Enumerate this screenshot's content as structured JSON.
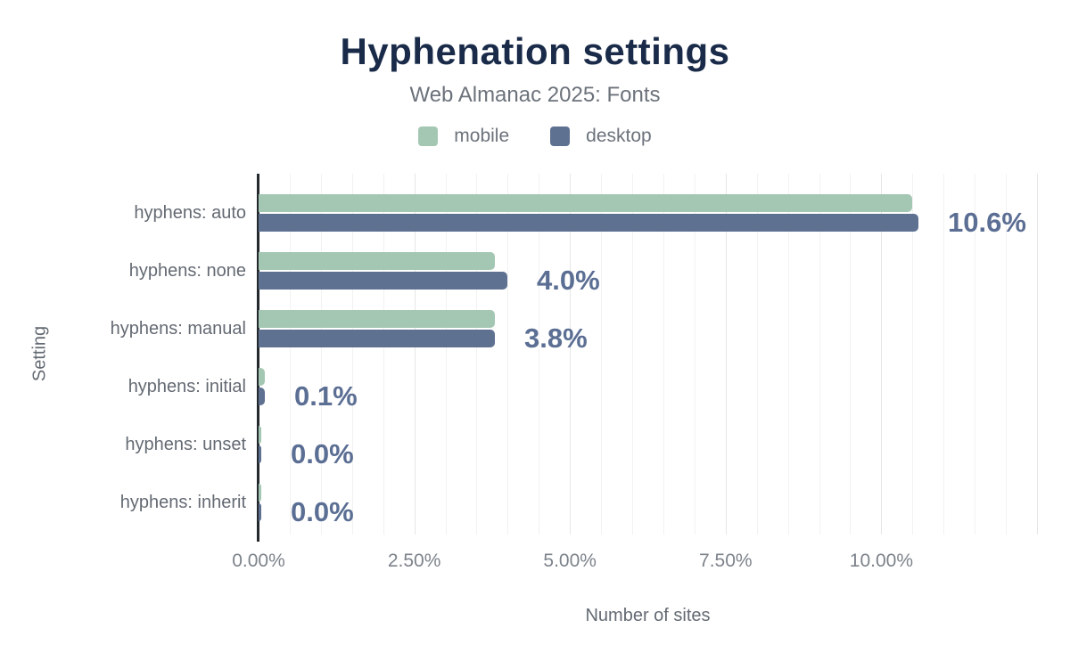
{
  "chart_data": {
    "type": "bar",
    "orientation": "horizontal",
    "title": "Hyphenation settings",
    "subtitle": "Web Almanac 2025: Fonts",
    "xlabel": "Number of sites",
    "ylabel": "Setting",
    "categories": [
      "hyphens: auto",
      "hyphens: none",
      "hyphens: manual",
      "hyphens: initial",
      "hyphens: unset",
      "hyphens: inherit"
    ],
    "series": [
      {
        "name": "mobile",
        "color": "#a4c7b3",
        "values": [
          10.5,
          3.8,
          3.8,
          0.1,
          0.0,
          0.0
        ]
      },
      {
        "name": "desktop",
        "color": "#5e7191",
        "values": [
          10.6,
          4.0,
          3.8,
          0.1,
          0.0,
          0.0
        ]
      }
    ],
    "bar_value_labels": [
      "10.6%",
      "4.0%",
      "3.8%",
      "0.1%",
      "0.0%",
      "0.0%"
    ],
    "x_ticks": [
      {
        "value": 0,
        "label": "0.00%"
      },
      {
        "value": 2.5,
        "label": "2.50%"
      },
      {
        "value": 5,
        "label": "5.00%"
      },
      {
        "value": 7.5,
        "label": "7.50%"
      },
      {
        "value": 10,
        "label": "10.00%"
      }
    ],
    "xlim": [
      0,
      12.5
    ],
    "gridline_step": 0.5,
    "grid": true,
    "legend_position": "top",
    "colors": {
      "title": "#1a2b49",
      "subtitle_text": "#6c727b",
      "axis_text": "#646a73",
      "tick_text": "#7d838b",
      "value_label": "#5b6e93",
      "grid_minor": "#f2f2f2",
      "grid_major": "#e6e6e6",
      "axis_line": "#24292e",
      "background": "#ffffff"
    }
  }
}
